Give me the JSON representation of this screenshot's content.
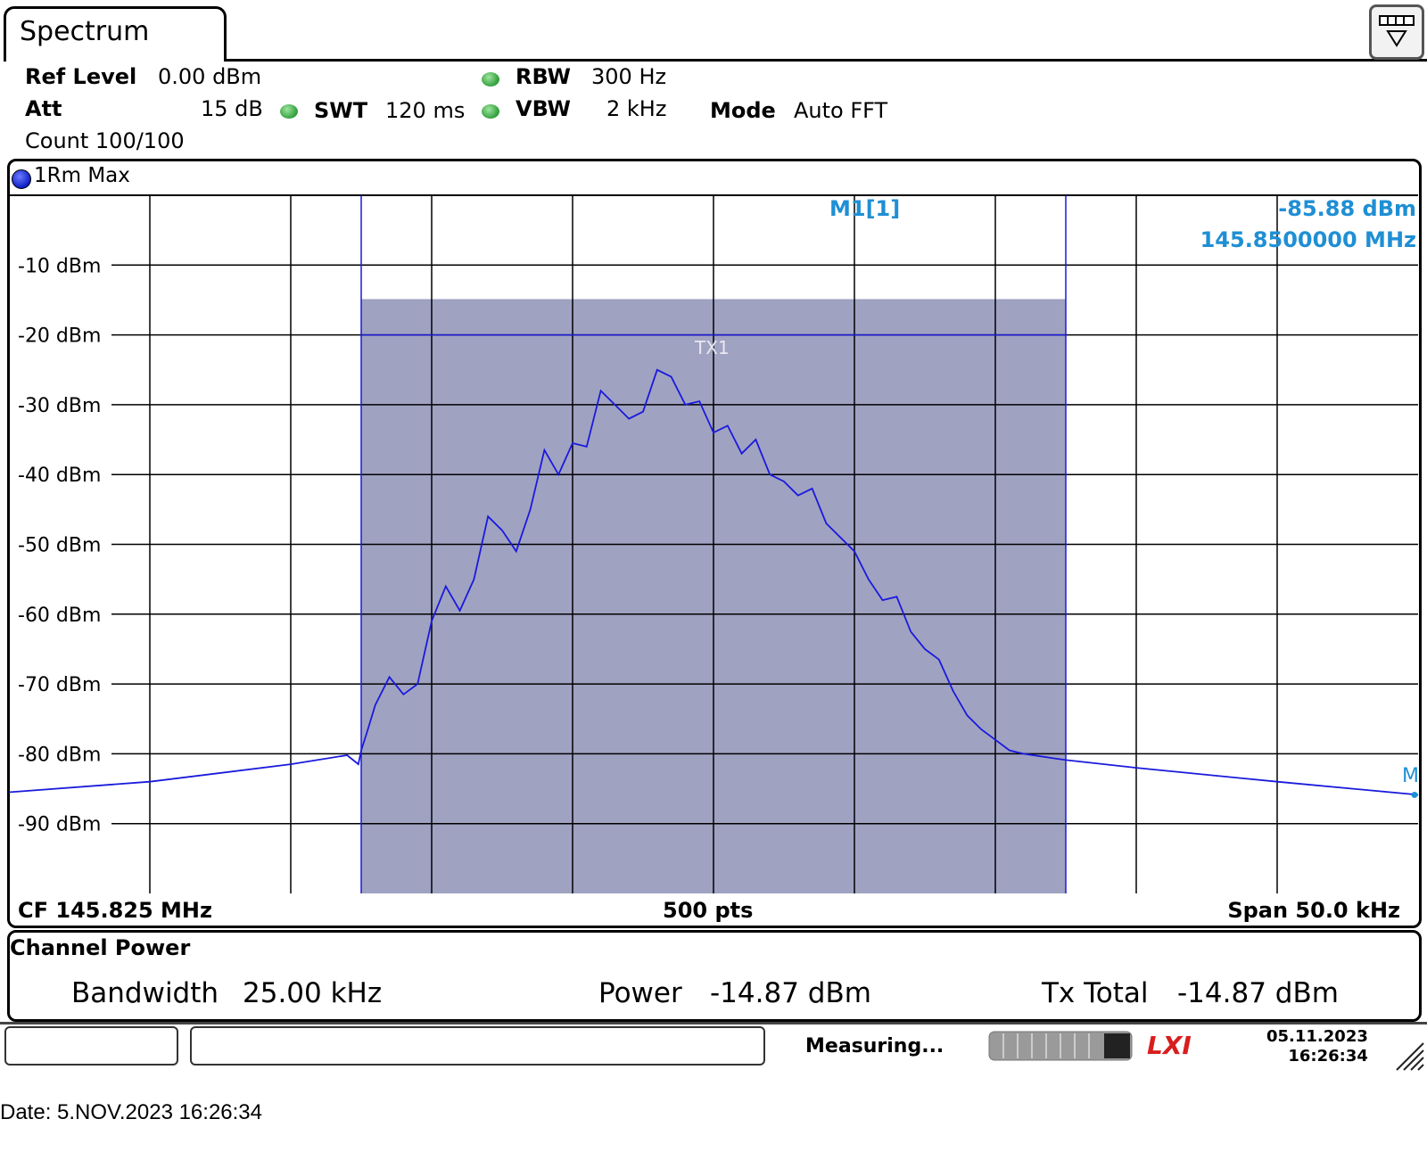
{
  "tab": {
    "title": "Spectrum"
  },
  "settings": {
    "ref_level_label": "Ref Level",
    "ref_level_value": "0.00 dBm",
    "att_label": "Att",
    "att_value": "15 dB",
    "swt_label": "SWT",
    "swt_value": "120 ms",
    "rbw_label": "RBW",
    "rbw_value": "300 Hz",
    "vbw_label": "VBW",
    "vbw_value": "2 kHz",
    "mode_label": "Mode",
    "mode_value": "Auto FFT",
    "count_text": "Count 100/100"
  },
  "trace": {
    "label": "1Rm Max",
    "color": "#1a1adc"
  },
  "marker": {
    "name": "M1[1]",
    "level": "-85.88 dBm",
    "frequency": "145.8500000 MHz",
    "short_label": "M",
    "color": "#1f8fd4"
  },
  "channel_label": "TX1",
  "footer": {
    "cf": "CF 145.825 MHz",
    "points": "500 pts",
    "span": "Span 50.0 kHz"
  },
  "channel_power": {
    "title": "Channel Power",
    "bandwidth_label": "Bandwidth",
    "bandwidth_value": "25.00 kHz",
    "power_label": "Power",
    "power_value": "-14.87 dBm",
    "txtotal_label": "Tx Total",
    "txtotal_value": "-14.87 dBm"
  },
  "status": {
    "measuring": "Measuring...",
    "date": "05.11.2023",
    "time": "16:26:34",
    "logo": "LXI"
  },
  "caption": "Date: 5.NOV.2023  16:26:34",
  "chart_data": {
    "type": "line",
    "x_unit": "kHz offset from CF",
    "xlim": [
      -25,
      25
    ],
    "ylim": [
      -100,
      0
    ],
    "yticks": [
      -10,
      -20,
      -30,
      -40,
      -50,
      -60,
      -70,
      -80,
      -90
    ],
    "ytick_labels": [
      "-10 dBm",
      "-20 dBm",
      "-30 dBm",
      "-40 dBm",
      "-50 dBm",
      "-60 dBm",
      "-70 dBm",
      "-80 dBm",
      "-90 dBm"
    ],
    "channel": {
      "x_start": -12.5,
      "x_end": 12.5,
      "level_line": -20,
      "fill_top": -14.87,
      "fill_color": "#a0a2c2"
    },
    "series": [
      {
        "x": [
          -25,
          -20,
          -15,
          -13,
          -12.6,
          -12.5,
          -12.3,
          -12,
          -11.5,
          -11,
          -10.5,
          -10,
          -9.5,
          -9,
          -8.5,
          -8,
          -7.5,
          -7,
          -6.5,
          -6,
          -5.5,
          -5,
          -4.5,
          -4,
          -3.5,
          -3,
          -2.5,
          -2,
          -1.5,
          -1,
          -0.5,
          0,
          0.5,
          1,
          1.5,
          2,
          2.5,
          3,
          3.5,
          4,
          4.5,
          5,
          5.5,
          6,
          6.5,
          7,
          7.5,
          8,
          8.5,
          9,
          9.5,
          10,
          10.5,
          11,
          11.5,
          12,
          12.5,
          15,
          20,
          25
        ],
        "y": [
          -85.5,
          -84,
          -81.5,
          -80.2,
          -81.5,
          -79.5,
          -77,
          -73,
          -69,
          -71.5,
          -70,
          -61,
          -56,
          -59.5,
          -55,
          -46,
          -48,
          -51,
          -45,
          -36.5,
          -40,
          -35.5,
          -36,
          -28,
          -30,
          -32,
          -31,
          -25,
          -26,
          -30,
          -29.5,
          -34,
          -33,
          -37,
          -35,
          -40,
          -41,
          -43,
          -42,
          -47,
          -49,
          -51,
          -55,
          -58,
          -57.5,
          -62.5,
          -65,
          -66.5,
          -71,
          -74.5,
          -76.5,
          -78,
          -79.5,
          -80,
          -80.3,
          -80.6,
          -80.9,
          -82,
          -84,
          -85.88
        ]
      }
    ]
  }
}
